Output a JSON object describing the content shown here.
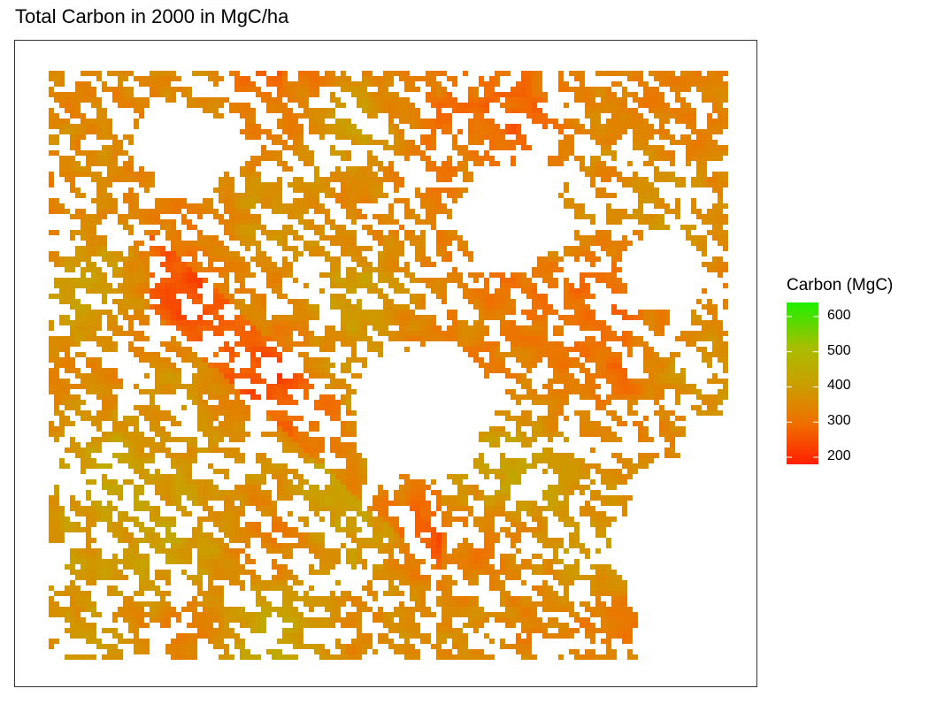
{
  "title": "Total Carbon in 2000 in MgC/ha",
  "legend": {
    "title": "Carbon (MgC)",
    "min": 180,
    "max": 640,
    "ticks": [
      {
        "label": "600",
        "value": 600
      },
      {
        "label": "500",
        "value": 500
      },
      {
        "label": "400",
        "value": 400
      },
      {
        "label": "300",
        "value": 300
      },
      {
        "label": "200",
        "value": 200
      }
    ]
  },
  "colors": {
    "low": "#ff1f00",
    "mid_low": "#f06f00",
    "mid": "#c9a000",
    "mid_high": "#a9bd00",
    "high": "#1ff000",
    "frame": "#333333"
  }
}
